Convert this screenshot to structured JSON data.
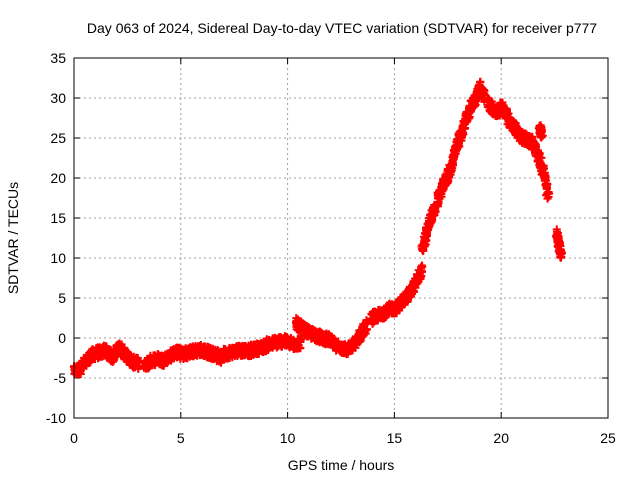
{
  "chart_data": {
    "type": "scatter",
    "title": "Day 063 of 2024, Sidereal Day-to-day VTEC variation (SDTVAR) for receiver p777",
    "xlabel": "GPS time / hours",
    "ylabel": "SDTVAR / TECUs",
    "xlim": [
      0,
      25
    ],
    "ylim": [
      -10,
      35
    ],
    "xticks": [
      0,
      5,
      10,
      15,
      20,
      25
    ],
    "yticks": [
      -10,
      -5,
      0,
      5,
      10,
      15,
      20,
      25,
      30,
      35
    ],
    "grid": true,
    "marker": "plus",
    "color": "#ff0000",
    "series": [
      {
        "name": "SDTVAR",
        "segments": [
          {
            "x": [
              0.0,
              0.3,
              0.6,
              0.9,
              1.2,
              1.5,
              1.8,
              2.1,
              2.4,
              2.7,
              3.0
            ],
            "y": [
              -4.2,
              -3.8,
              -2.8,
              -2.0,
              -1.8,
              -1.6,
              -2.4,
              -1.2,
              -2.0,
              -3.0,
              -3.2
            ]
          },
          {
            "x": [
              3.3,
              3.6,
              3.9,
              4.2,
              4.5,
              4.8,
              5.1,
              5.4,
              5.7,
              6.0,
              6.3,
              6.6,
              6.9
            ],
            "y": [
              -3.5,
              -2.8,
              -2.6,
              -2.8,
              -2.2,
              -1.8,
              -2.0,
              -1.8,
              -1.6,
              -1.5,
              -1.8,
              -2.0,
              -2.6
            ]
          },
          {
            "x": [
              7.0,
              7.3,
              7.6,
              7.9,
              8.2,
              8.5,
              8.8,
              9.1,
              9.4,
              9.7,
              10.0,
              10.3,
              10.6
            ],
            "y": [
              -2.0,
              -1.8,
              -1.6,
              -1.5,
              -1.6,
              -1.4,
              -1.2,
              -0.8,
              -0.6,
              -0.4,
              -0.5,
              -0.8,
              -0.6
            ]
          },
          {
            "x": [
              10.4,
              10.7,
              11.0,
              11.3,
              11.6,
              11.9,
              12.2,
              12.5,
              12.8,
              13.1,
              13.4,
              13.7
            ],
            "y": [
              1.8,
              1.2,
              0.6,
              0.4,
              0.0,
              -0.2,
              -0.8,
              -1.2,
              -1.5,
              -0.8,
              0.4,
              1.6
            ]
          },
          {
            "x": [
              13.9,
              14.2,
              14.5,
              14.8,
              15.1,
              15.4,
              15.7,
              16.0,
              16.3
            ],
            "y": [
              2.4,
              2.8,
              3.2,
              3.6,
              3.8,
              4.6,
              5.5,
              6.8,
              8.6
            ]
          },
          {
            "x": [
              16.3,
              16.5,
              16.7,
              16.9
            ],
            "y": [
              10.8,
              13.0,
              15.0,
              16.2
            ]
          },
          {
            "x": [
              17.0,
              17.2,
              17.4,
              17.6,
              17.8,
              18.0,
              18.2,
              18.4,
              18.6,
              18.8,
              19.0,
              19.2
            ],
            "y": [
              17.0,
              18.6,
              19.6,
              21.0,
              22.8,
              24.6,
              26.0,
              27.6,
              29.0,
              30.0,
              31.4,
              30.2
            ]
          },
          {
            "x": [
              19.4,
              19.6,
              19.8,
              20.0,
              20.2,
              20.4,
              20.6,
              20.8,
              21.0,
              21.2,
              21.4,
              21.6,
              21.8,
              22.0,
              22.2
            ],
            "y": [
              29.4,
              28.6,
              28.2,
              28.8,
              28.4,
              27.0,
              26.4,
              25.6,
              25.0,
              24.8,
              24.6,
              23.6,
              22.2,
              20.6,
              17.6
            ]
          },
          {
            "x": [
              21.8,
              21.9
            ],
            "y": [
              26.2,
              25.6
            ]
          },
          {
            "x": [
              22.6,
              22.7,
              22.8
            ],
            "y": [
              13.0,
              11.8,
              10.4
            ]
          }
        ]
      }
    ]
  }
}
